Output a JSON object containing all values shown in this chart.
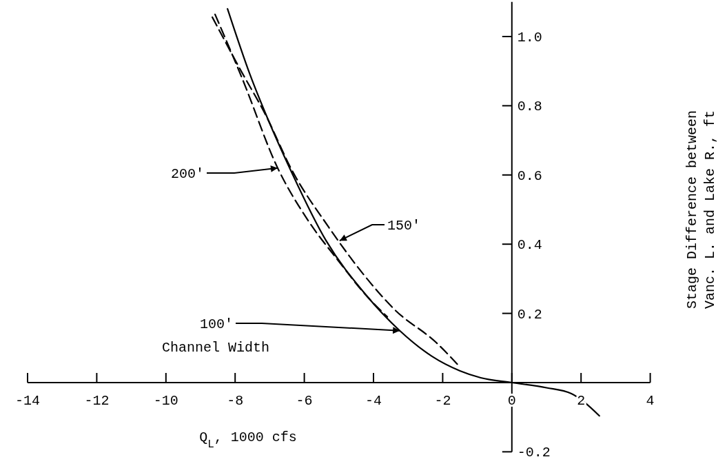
{
  "chart_data": {
    "type": "line",
    "xlabel": "Q$_{L}$, 1000 cfs",
    "ylabel": "Stage Difference between Vanc. L. and Lake R., ft",
    "xlim": [
      -14,
      4
    ],
    "xticks": [
      -14,
      -12,
      -10,
      -8,
      -6,
      -4,
      -2,
      0,
      2,
      4
    ],
    "ylim": [
      -0.2,
      1.1
    ],
    "yticks": [
      -0.2,
      0.2,
      0.4,
      0.6,
      0.8,
      {
        "value": 1,
        "label": "1.0"
      }
    ],
    "grid": false,
    "marker": "none",
    "series": [
      {
        "color": "#000000",
        "line_style": "solid",
        "x": [
          -8.22,
          -7.57,
          -7.03,
          -6.47,
          -5.37,
          -4.24,
          -3.24,
          -2.31,
          -1.5,
          -0.9,
          0,
          1.0,
          1.72,
          2.53
        ],
        "values": [
          1.08,
          0.89,
          0.756,
          0.63,
          0.41,
          0.256,
          0.15,
          0.076,
          0.034,
          0.014,
          0,
          -0.015,
          -0.032,
          -0.096
        ]
      },
      {
        "color": "#000000",
        "line_style": "dashed",
        "x": [
          -8.66,
          -7.88,
          -7.1,
          -6.37,
          -5.3,
          -4.3,
          -3.38,
          -2.19,
          -1.49
        ],
        "values": [
          1.056,
          0.91,
          0.77,
          0.616,
          0.45,
          0.314,
          0.21,
          0.116,
          0.044
        ]
      },
      {
        "color": "#000000",
        "line_style": "dashed",
        "x": [
          -8.58,
          -7.8,
          -6.77,
          -5.9,
          -5.0,
          -4.24,
          -3.6
        ],
        "values": [
          1.064,
          0.88,
          0.62,
          0.47,
          0.35,
          0.255,
          0.19
        ]
      }
    ],
    "annotations": [
      {
        "text": "200'",
        "x": -6.77,
        "y": 0.62
      },
      {
        "text": "150'",
        "x": -4.98,
        "y": 0.41
      },
      {
        "text": "100'",
        "x": -3.24,
        "y": 0.15
      },
      "Channel Width"
    ]
  }
}
